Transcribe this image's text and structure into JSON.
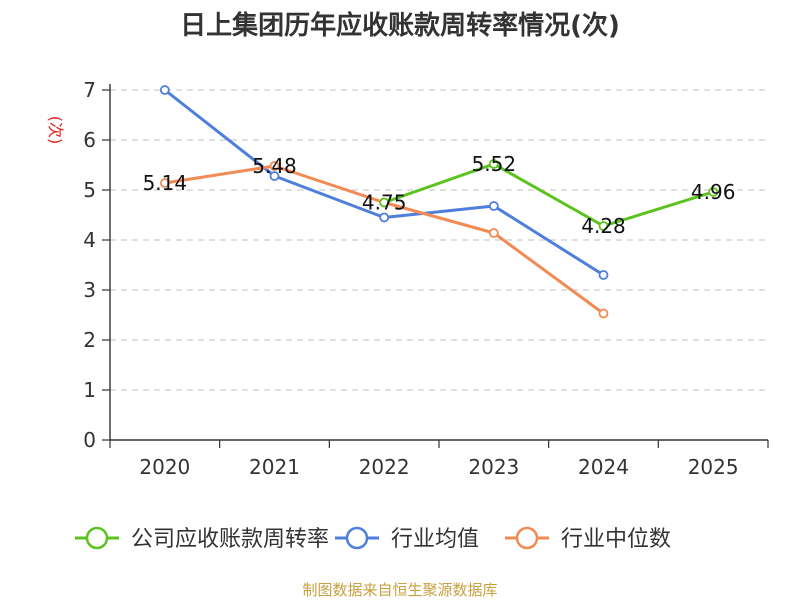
{
  "chart_data": {
    "type": "line",
    "title": "日上集团历年应收账款周转率情况(次)",
    "ylabel": "(次)",
    "xlabel": "",
    "categories": [
      "2020",
      "2021",
      "2022",
      "2023",
      "2024",
      "2025"
    ],
    "yticks": [
      "0",
      "1",
      "2",
      "3",
      "4",
      "5",
      "6",
      "7"
    ],
    "ylim": [
      0,
      7
    ],
    "grid": true,
    "legend_position": "bottom",
    "series": [
      {
        "name": "公司应收账款周转率",
        "color": "#5cc31e",
        "values": [
          null,
          null,
          4.75,
          5.52,
          4.28,
          4.96
        ],
        "labels": [
          null,
          null,
          "4.75",
          "5.52",
          "4.28",
          "4.96"
        ]
      },
      {
        "name": "行业均值",
        "color": "#4e7fdc",
        "values": [
          7.0,
          5.28,
          4.45,
          4.68,
          3.3,
          null
        ],
        "labels": [
          null,
          null,
          null,
          null,
          null,
          null
        ]
      },
      {
        "name": "行业中位数",
        "color": "#f28a54",
        "values": [
          5.14,
          5.48,
          4.75,
          4.14,
          2.53,
          null
        ],
        "labels": [
          "5.14",
          "5.48",
          null,
          null,
          null,
          null
        ]
      }
    ]
  },
  "source": "制图数据来自恒生聚源数据库"
}
